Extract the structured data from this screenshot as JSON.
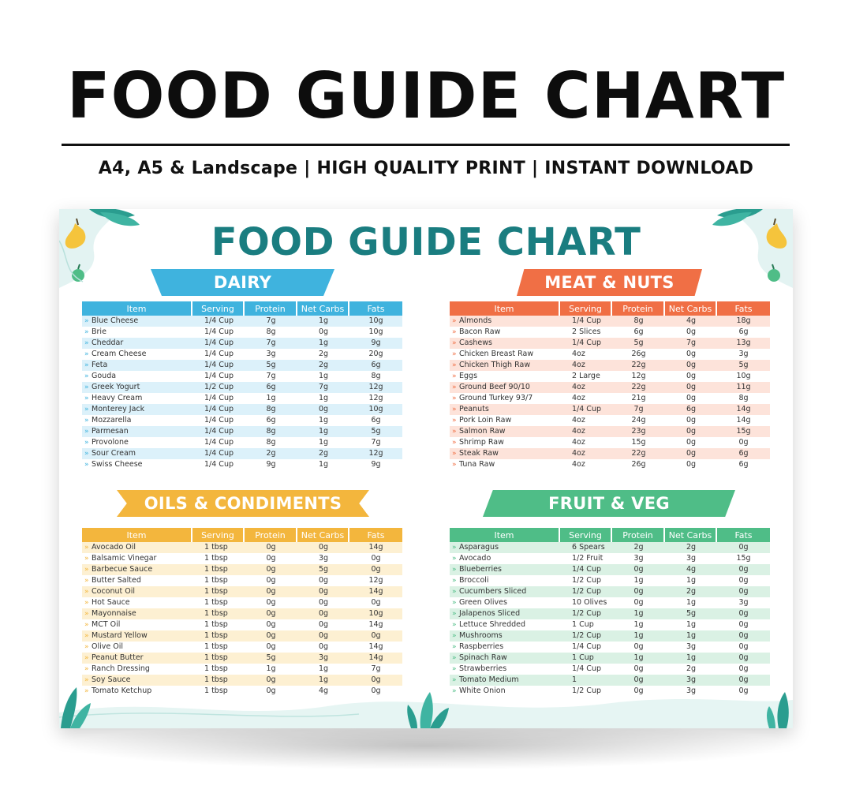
{
  "header": {
    "title": "FOOD GUIDE CHART",
    "subtitle": "A4, A5 & Landscape | HIGH QUALITY PRINT | INSTANT DOWNLOAD"
  },
  "poster": {
    "title": "FOOD GUIDE CHART",
    "columns": [
      "Item",
      "Serving",
      "Protein",
      "Net Carbs",
      "Fats"
    ],
    "colors": {
      "title": "#1a7d80",
      "dairy": "#3fb3de",
      "meat": "#f06f45",
      "oils": "#f3b63d",
      "fruit": "#4fbd87"
    },
    "sections": {
      "dairy": {
        "title": "DAIRY",
        "rows": [
          [
            "Blue Cheese",
            "1/4 Cup",
            "7g",
            "1g",
            "10g"
          ],
          [
            "Brie",
            "1/4 Cup",
            "8g",
            "0g",
            "10g"
          ],
          [
            "Cheddar",
            "1/4 Cup",
            "7g",
            "1g",
            "9g"
          ],
          [
            "Cream Cheese",
            "1/4 Cup",
            "3g",
            "2g",
            "20g"
          ],
          [
            "Feta",
            "1/4 Cup",
            "5g",
            "2g",
            "6g"
          ],
          [
            "Gouda",
            "1/4 Cup",
            "7g",
            "1g",
            "8g"
          ],
          [
            "Greek Yogurt",
            "1/2 Cup",
            "6g",
            "7g",
            "12g"
          ],
          [
            "Heavy Cream",
            "1/4 Cup",
            "1g",
            "1g",
            "12g"
          ],
          [
            "Monterey Jack",
            "1/4 Cup",
            "8g",
            "0g",
            "10g"
          ],
          [
            "Mozzarella",
            "1/4 Cup",
            "6g",
            "1g",
            "6g"
          ],
          [
            "Parmesan",
            "1/4 Cup",
            "8g",
            "1g",
            "5g"
          ],
          [
            "Provolone",
            "1/4 Cup",
            "8g",
            "1g",
            "7g"
          ],
          [
            "Sour Cream",
            "1/4 Cup",
            "2g",
            "2g",
            "12g"
          ],
          [
            "Swiss Cheese",
            "1/4 Cup",
            "9g",
            "1g",
            "9g"
          ]
        ]
      },
      "meat": {
        "title": "MEAT & NUTS",
        "rows": [
          [
            "Almonds",
            "1/4 Cup",
            "8g",
            "4g",
            "18g"
          ],
          [
            "Bacon Raw",
            "2 Slices",
            "6g",
            "0g",
            "6g"
          ],
          [
            "Cashews",
            "1/4 Cup",
            "5g",
            "7g",
            "13g"
          ],
          [
            "Chicken Breast Raw",
            "4oz",
            "26g",
            "0g",
            "3g"
          ],
          [
            "Chicken Thigh Raw",
            "4oz",
            "22g",
            "0g",
            "5g"
          ],
          [
            "Eggs",
            "2 Large",
            "12g",
            "0g",
            "10g"
          ],
          [
            "Ground Beef 90/10",
            "4oz",
            "22g",
            "0g",
            "11g"
          ],
          [
            "Ground Turkey 93/7",
            "4oz",
            "21g",
            "0g",
            "8g"
          ],
          [
            "Peanuts",
            "1/4 Cup",
            "7g",
            "6g",
            "14g"
          ],
          [
            "Pork Loin Raw",
            "4oz",
            "24g",
            "0g",
            "14g"
          ],
          [
            "Salmon Raw",
            "4oz",
            "23g",
            "0g",
            "15g"
          ],
          [
            "Shrimp Raw",
            "4oz",
            "15g",
            "0g",
            "0g"
          ],
          [
            "Steak Raw",
            "4oz",
            "22g",
            "0g",
            "6g"
          ],
          [
            "Tuna Raw",
            "4oz",
            "26g",
            "0g",
            "6g"
          ]
        ]
      },
      "oils": {
        "title": "OILS & CONDIMENTS",
        "rows": [
          [
            "Avocado Oil",
            "1 tbsp",
            "0g",
            "0g",
            "14g"
          ],
          [
            "Balsamic Vinegar",
            "1 tbsp",
            "0g",
            "3g",
            "0g"
          ],
          [
            "Barbecue Sauce",
            "1 tbsp",
            "0g",
            "5g",
            "0g"
          ],
          [
            "Butter Salted",
            "1 tbsp",
            "0g",
            "0g",
            "12g"
          ],
          [
            "Coconut Oil",
            "1 tbsp",
            "0g",
            "0g",
            "14g"
          ],
          [
            "Hot Sauce",
            "1 tbsp",
            "0g",
            "0g",
            "0g"
          ],
          [
            "Mayonnaise",
            "1 tbsp",
            "0g",
            "0g",
            "10g"
          ],
          [
            "MCT Oil",
            "1 tbsp",
            "0g",
            "0g",
            "14g"
          ],
          [
            "Mustard Yellow",
            "1 tbsp",
            "0g",
            "0g",
            "0g"
          ],
          [
            "Olive Oil",
            "1 tbsp",
            "0g",
            "0g",
            "14g"
          ],
          [
            "Peanut Butter",
            "1 tbsp",
            "5g",
            "3g",
            "14g"
          ],
          [
            "Ranch Dressing",
            "1 tbsp",
            "1g",
            "1g",
            "7g"
          ],
          [
            "Soy Sauce",
            "1 tbsp",
            "0g",
            "1g",
            "0g"
          ],
          [
            "Tomato Ketchup",
            "1 tbsp",
            "0g",
            "4g",
            "0g"
          ]
        ]
      },
      "fruit": {
        "title": "FRUIT & VEG",
        "rows": [
          [
            "Asparagus",
            "6 Spears",
            "2g",
            "2g",
            "0g"
          ],
          [
            "Avocado",
            "1/2 Fruit",
            "3g",
            "3g",
            "15g"
          ],
          [
            "Blueberries",
            "1/4 Cup",
            "0g",
            "4g",
            "0g"
          ],
          [
            "Broccoli",
            "1/2 Cup",
            "1g",
            "1g",
            "0g"
          ],
          [
            "Cucumbers Sliced",
            "1/2 Cup",
            "0g",
            "2g",
            "0g"
          ],
          [
            "Green Olives",
            "10 Olives",
            "0g",
            "1g",
            "3g"
          ],
          [
            "Jalapenos Sliced",
            "1/2 Cup",
            "1g",
            "5g",
            "0g"
          ],
          [
            "Lettuce Shredded",
            "1 Cup",
            "1g",
            "1g",
            "0g"
          ],
          [
            "Mushrooms",
            "1/2 Cup",
            "1g",
            "1g",
            "0g"
          ],
          [
            "Raspberries",
            "1/4 Cup",
            "0g",
            "3g",
            "0g"
          ],
          [
            "Spinach Raw",
            "1 Cup",
            "1g",
            "1g",
            "0g"
          ],
          [
            "Strawberries",
            "1/4 Cup",
            "0g",
            "2g",
            "0g"
          ],
          [
            "Tomato Medium",
            "1",
            "0g",
            "3g",
            "0g"
          ],
          [
            "White Onion",
            "1/2 Cup",
            "0g",
            "3g",
            "0g"
          ]
        ]
      }
    }
  }
}
